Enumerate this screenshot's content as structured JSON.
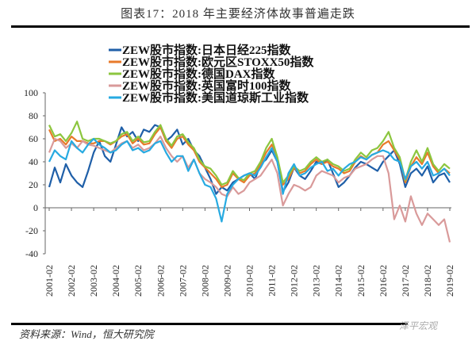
{
  "title": "图表17：2018 年主要经济体故事普遍走跌",
  "source": "资料来源：Wind，恒大研究院",
  "watermark": "泽平宏观",
  "chart_data": {
    "type": "line",
    "title": "图表17：2018 年主要经济体故事普遍走跌",
    "xlabel": "",
    "ylabel": "",
    "ylim": [
      -40,
      100
    ],
    "yticks": [
      -40,
      -20,
      0,
      20,
      40,
      60,
      80,
      100
    ],
    "x_tick_labels": [
      "2001-02",
      "2002-02",
      "2003-02",
      "2004-02",
      "2005-02",
      "2006-02",
      "2007-02",
      "2008-02",
      "2009-02",
      "2010-02",
      "2011-02",
      "2012-02",
      "2013-02",
      "2014-02",
      "2015-02",
      "2016-02",
      "2017-02",
      "2018-02",
      "2019-02"
    ],
    "x_frequency": "quarterly from 2001-02 to 2019-02",
    "legend_position": "top-center",
    "grid": false,
    "series": [
      {
        "name": "ZEW股市指数:日本日经225指数",
        "color": "#1f5fa8",
        "values": [
          18,
          35,
          22,
          38,
          28,
          22,
          18,
          32,
          48,
          58,
          45,
          40,
          55,
          70,
          62,
          66,
          58,
          68,
          66,
          72,
          70,
          58,
          62,
          68,
          55,
          60,
          50,
          45,
          35,
          25,
          12,
          18,
          15,
          22,
          25,
          28,
          30,
          25,
          38,
          42,
          50,
          40,
          14,
          22,
          35,
          28,
          25,
          32,
          40,
          38,
          42,
          30,
          18,
          22,
          28,
          35,
          40,
          38,
          35,
          32,
          40,
          45,
          50,
          38,
          18,
          30,
          34,
          28,
          36,
          22,
          28,
          30,
          22
        ]
      },
      {
        "name": "ZEW股市指数:欧元区STOXX50指数",
        "color": "#e87a2a",
        "values": [
          68,
          58,
          60,
          55,
          62,
          58,
          58,
          56,
          56,
          58,
          58,
          55,
          58,
          62,
          64,
          56,
          60,
          55,
          56,
          64,
          70,
          58,
          52,
          60,
          62,
          55,
          50,
          40,
          35,
          30,
          25,
          18,
          20,
          30,
          25,
          22,
          28,
          30,
          38,
          48,
          55,
          42,
          20,
          25,
          35,
          30,
          32,
          38,
          42,
          38,
          40,
          36,
          34,
          30,
          32,
          40,
          45,
          42,
          46,
          48,
          55,
          58,
          50,
          42,
          22,
          36,
          44,
          38,
          48,
          36,
          30,
          34,
          30
        ]
      },
      {
        "name": "ZEW股市指数:德国DAX指数",
        "color": "#8cc63f",
        "values": [
          72,
          62,
          64,
          58,
          65,
          75,
          60,
          58,
          60,
          60,
          58,
          56,
          58,
          64,
          66,
          58,
          62,
          57,
          58,
          66,
          72,
          60,
          54,
          62,
          64,
          57,
          52,
          42,
          36,
          34,
          28,
          20,
          22,
          32,
          26,
          24,
          30,
          32,
          40,
          52,
          60,
          44,
          22,
          28,
          36,
          32,
          34,
          40,
          44,
          40,
          42,
          38,
          36,
          32,
          34,
          42,
          48,
          44,
          50,
          52,
          58,
          66,
          52,
          44,
          24,
          40,
          50,
          40,
          52,
          38,
          32,
          38,
          34
        ]
      },
      {
        "name": "ZEW股市指数:英国富时100指数",
        "color": "#d99a9a",
        "values": [
          48,
          60,
          58,
          52,
          56,
          52,
          58,
          55,
          54,
          52,
          50,
          48,
          52,
          56,
          58,
          52,
          55,
          50,
          52,
          56,
          62,
          52,
          45,
          40,
          45,
          35,
          42,
          30,
          25,
          22,
          18,
          12,
          10,
          18,
          12,
          15,
          22,
          25,
          28,
          35,
          42,
          30,
          2,
          12,
          20,
          18,
          15,
          18,
          28,
          32,
          30,
          28,
          22,
          26,
          28,
          34,
          36,
          38,
          42,
          45,
          45,
          30,
          -10,
          2,
          -12,
          10,
          -5,
          -15,
          -5,
          -10,
          -15,
          -10,
          -30
        ]
      },
      {
        "name": "ZEW股市指数:美国道琼斯工业指数",
        "color": "#27aae1",
        "values": [
          40,
          50,
          45,
          42,
          58,
          52,
          48,
          55,
          60,
          55,
          52,
          48,
          50,
          55,
          58,
          50,
          52,
          48,
          50,
          56,
          58,
          48,
          40,
          45,
          45,
          32,
          42,
          30,
          20,
          18,
          8,
          -12,
          12,
          20,
          25,
          28,
          30,
          28,
          35,
          44,
          52,
          40,
          12,
          30,
          38,
          28,
          30,
          35,
          38,
          40,
          32,
          34,
          28,
          34,
          38,
          40,
          44,
          42,
          46,
          48,
          50,
          48,
          42,
          40,
          25,
          36,
          40,
          34,
          40,
          28,
          30,
          34,
          28
        ]
      }
    ]
  }
}
